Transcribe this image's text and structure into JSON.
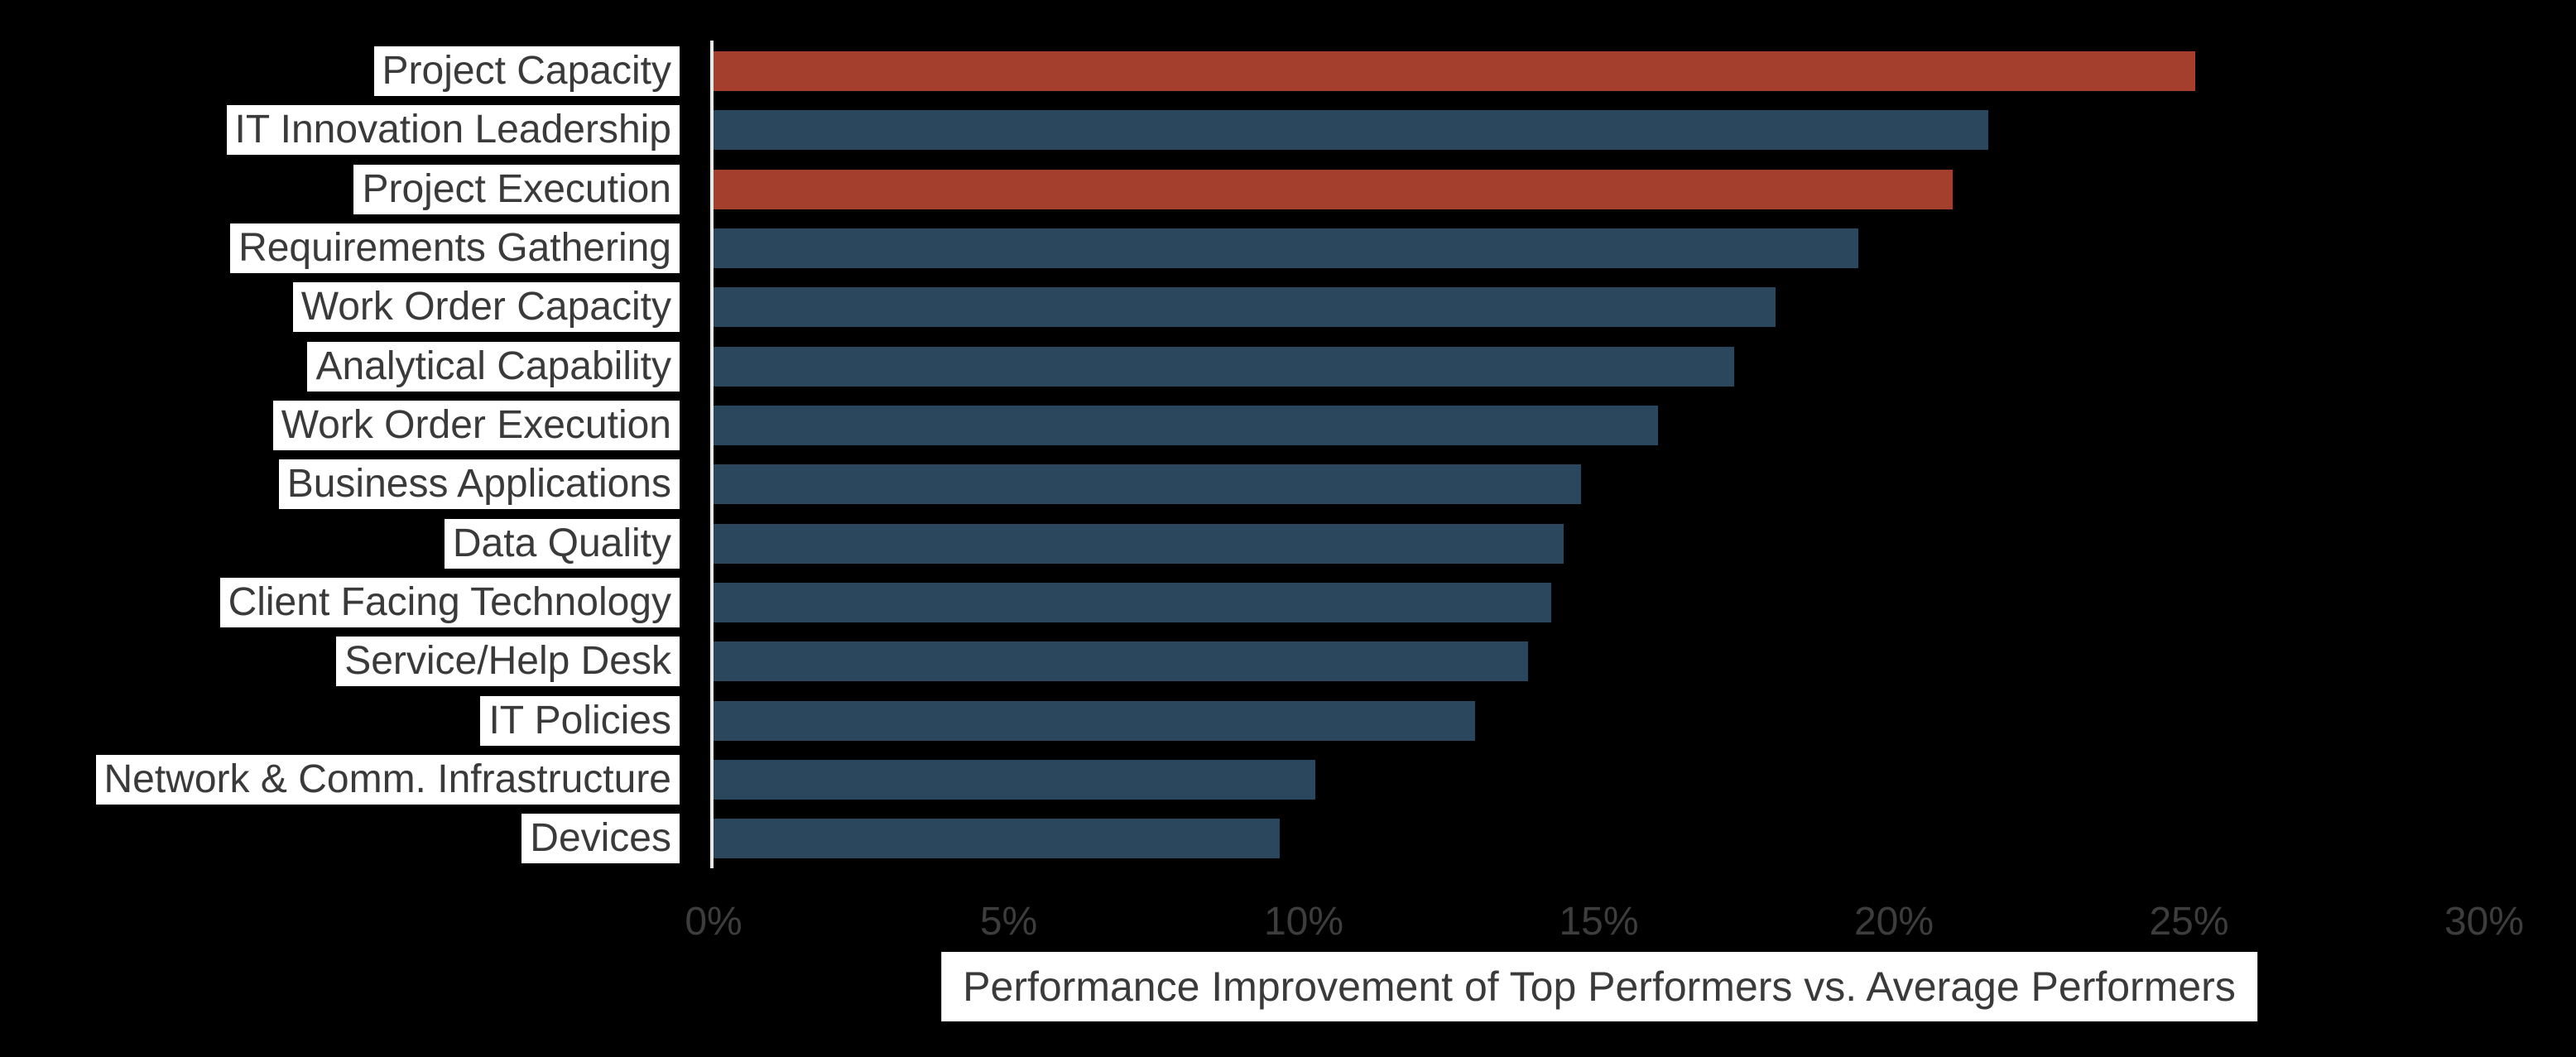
{
  "chart_data": {
    "type": "bar",
    "orientation": "horizontal",
    "title": "",
    "xlabel": "Performance Improvement of Top Performers vs. Average Performers",
    "ylabel": "",
    "xlim": [
      0,
      30
    ],
    "x_tick_labels": [
      "0%",
      "5%",
      "10%",
      "15%",
      "20%",
      "25%",
      "30%"
    ],
    "x_tick_values": [
      0,
      5,
      10,
      15,
      20,
      25,
      30
    ],
    "grid": false,
    "legend": false,
    "background_color": "#000000",
    "categories": [
      "Project Capacity",
      "IT Innovation Leadership",
      "Project Execution",
      "Requirements Gathering",
      "Work Order Capacity",
      "Analytical Capability",
      "Work Order Execution",
      "Business Applications",
      "Data Quality",
      "Client Facing Technology",
      "Service/Help Desk",
      "IT Policies",
      "Network & Comm. Infrastructure",
      "Devices"
    ],
    "values": [
      25.1,
      21.6,
      21.0,
      19.4,
      18.0,
      17.3,
      16.0,
      14.7,
      14.4,
      14.2,
      13.8,
      12.9,
      10.2,
      9.6
    ],
    "highlighted": [
      true,
      false,
      true,
      false,
      false,
      false,
      false,
      false,
      false,
      false,
      false,
      false,
      false,
      false
    ],
    "colors": {
      "normal": "#2a475e",
      "highlight": "#a43e2d",
      "axis_line": "#e8e8e6",
      "tick_text": "#3d3d3d",
      "label_text": "#3a3a3a",
      "label_background": "#ffffff"
    }
  }
}
